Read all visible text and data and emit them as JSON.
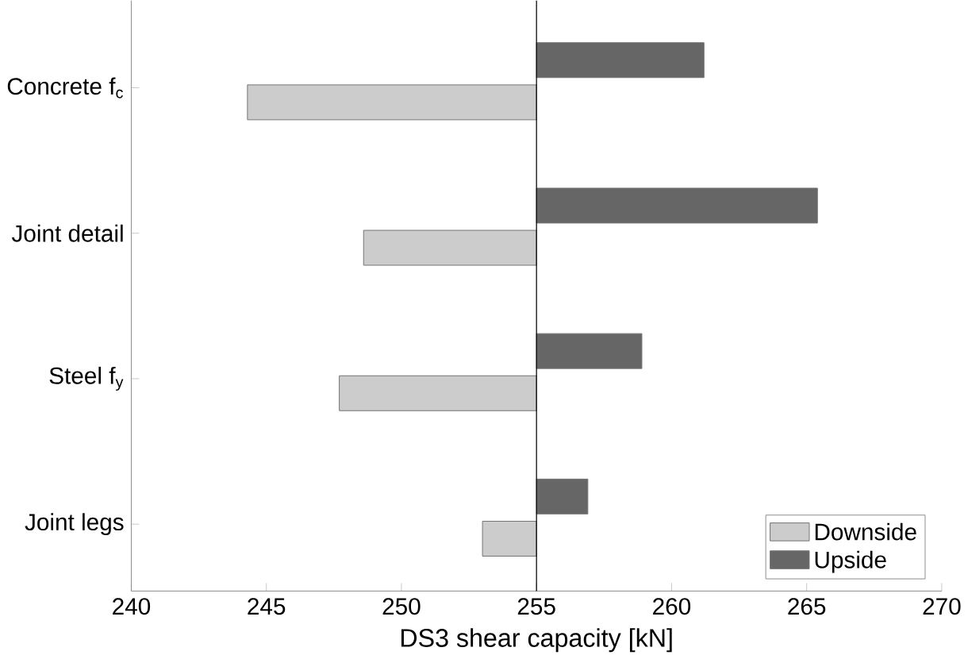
{
  "chart_data": {
    "type": "bar",
    "orientation": "horizontal",
    "xlabel": "DS3 shear capacity [kN]",
    "categories": [
      "Concrete f$_{c}$",
      "Joint detail",
      "Steel f$_{y}$",
      "Joint legs"
    ],
    "series": [
      {
        "name": "Downside",
        "color": "#cccccc",
        "base": [
          255,
          255,
          255,
          255
        ],
        "values": [
          -10.7,
          -6.4,
          -7.3,
          -2.0
        ]
      },
      {
        "name": "Upside",
        "color": "#666666",
        "base": [
          255,
          255,
          255,
          255
        ],
        "values": [
          6.2,
          10.4,
          3.9,
          1.9
        ]
      }
    ],
    "xlim": [
      240,
      270
    ],
    "xticks": [
      240,
      245,
      250,
      255,
      260,
      265,
      270
    ],
    "ref_lines": [
      {
        "axis": "x",
        "value": 255,
        "color": "#000000"
      }
    ],
    "legend": "bottom right"
  }
}
